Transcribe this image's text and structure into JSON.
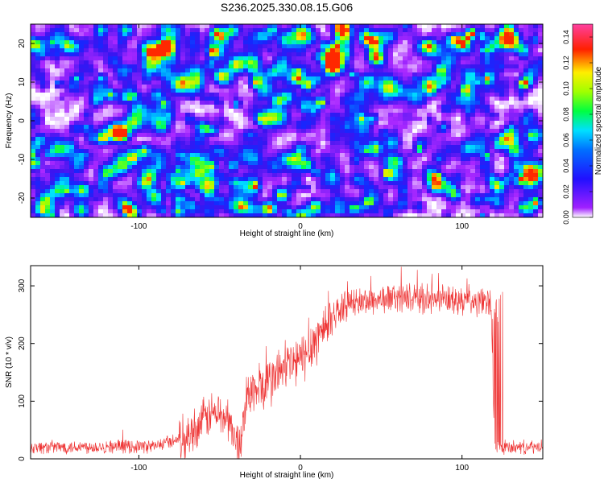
{
  "title": "S236.2025.330.08.15.G06",
  "chart_data": [
    {
      "type": "heatmap",
      "xlabel": "Height of straight line (km)",
      "ylabel": "Frequency (Hz)",
      "xlim": [
        -167,
        150
      ],
      "ylim": [
        -25,
        25
      ],
      "xticks": [
        -100,
        0,
        100
      ],
      "yticks": [
        -20,
        -10,
        0,
        10,
        20
      ],
      "colorbar": {
        "label": "Normalized spectral amplitude",
        "range": [
          0.0,
          0.15
        ],
        "ticks": [
          "0.00",
          "0.02",
          "0.04",
          "0.06",
          "0.08",
          "0.10",
          "0.12",
          "0.14"
        ],
        "colormap": [
          "#ffffff",
          "#8a00ff",
          "#0000ff",
          "#00e5ff",
          "#00ff00",
          "#ffff00",
          "#ff0000",
          "#ff3399"
        ]
      },
      "description_values": {
        "background_level": 0.03,
        "peak_level": 0.13
      }
    },
    {
      "type": "line",
      "xlabel": "Height of straight line (km)",
      "ylabel": "SNR (10 * v/v)",
      "xlim": [
        -167,
        150
      ],
      "ylim": [
        0,
        335
      ],
      "xticks": [
        -100,
        0,
        100
      ],
      "yticks": [
        0,
        100,
        200,
        300
      ],
      "color": "#ee3333",
      "profile_points": [
        {
          "x": -167,
          "y": 20
        },
        {
          "x": -90,
          "y": 22
        },
        {
          "x": -70,
          "y": 40
        },
        {
          "x": -55,
          "y": 80
        },
        {
          "x": -45,
          "y": 70
        },
        {
          "x": -38,
          "y": 20
        },
        {
          "x": -33,
          "y": 110
        },
        {
          "x": -20,
          "y": 130
        },
        {
          "x": -10,
          "y": 160
        },
        {
          "x": 0,
          "y": 170
        },
        {
          "x": 10,
          "y": 210
        },
        {
          "x": 20,
          "y": 250
        },
        {
          "x": 30,
          "y": 270
        },
        {
          "x": 60,
          "y": 280
        },
        {
          "x": 118,
          "y": 270
        },
        {
          "x": 120,
          "y": 20
        },
        {
          "x": 150,
          "y": 20
        }
      ]
    }
  ]
}
